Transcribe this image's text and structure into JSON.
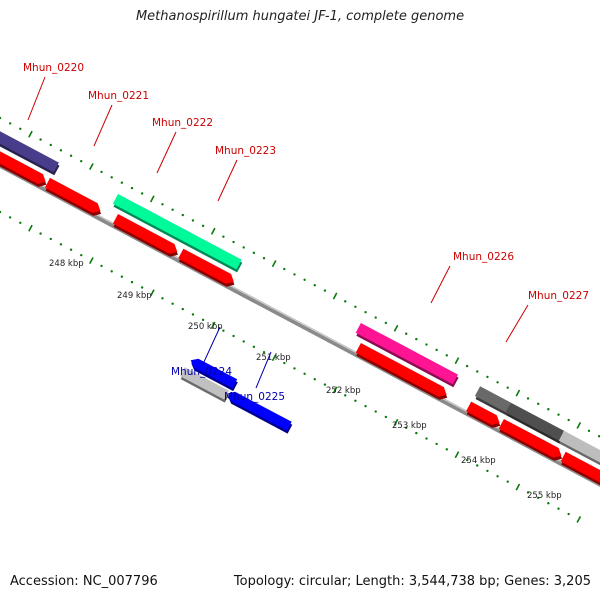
{
  "title": "Methanospirillum hungatei JF-1, complete genome",
  "footer": {
    "accession": "Accession: NC_007796",
    "topology": "Topology: circular; Length: 3,544,738 bp; Genes: 3,205"
  },
  "colors": {
    "forward_gene_label": "#cc0000",
    "reverse_gene_label": "#0000aa",
    "cds_red": "#ff0000",
    "backbone": "#8a8a8a",
    "tick_green": "#0a7a0a"
  },
  "scale_labels": [
    "248 kbp",
    "249 kbp",
    "250 kbp",
    "251 kbp",
    "252 kbp",
    "253 kbp",
    "254 kbp",
    "255 kbp"
  ],
  "genes": [
    {
      "name": "Mhun_0220",
      "strand": "forward",
      "color": "#483d8b"
    },
    {
      "name": "Mhun_0221",
      "strand": "forward",
      "color": "#ff0000"
    },
    {
      "name": "Mhun_0222",
      "strand": "forward",
      "color": "#00fa9a"
    },
    {
      "name": "Mhun_0223",
      "strand": "forward",
      "color": "#ff0000"
    },
    {
      "name": "Mhun_0224",
      "strand": "reverse",
      "color": "#c0c0c0"
    },
    {
      "name": "Mhun_0225",
      "strand": "reverse",
      "color": "#0000ff"
    },
    {
      "name": "Mhun_0226",
      "strand": "forward",
      "color": "#ff1493"
    },
    {
      "name": "Mhun_0227",
      "strand": "forward",
      "color": "#696969"
    }
  ]
}
